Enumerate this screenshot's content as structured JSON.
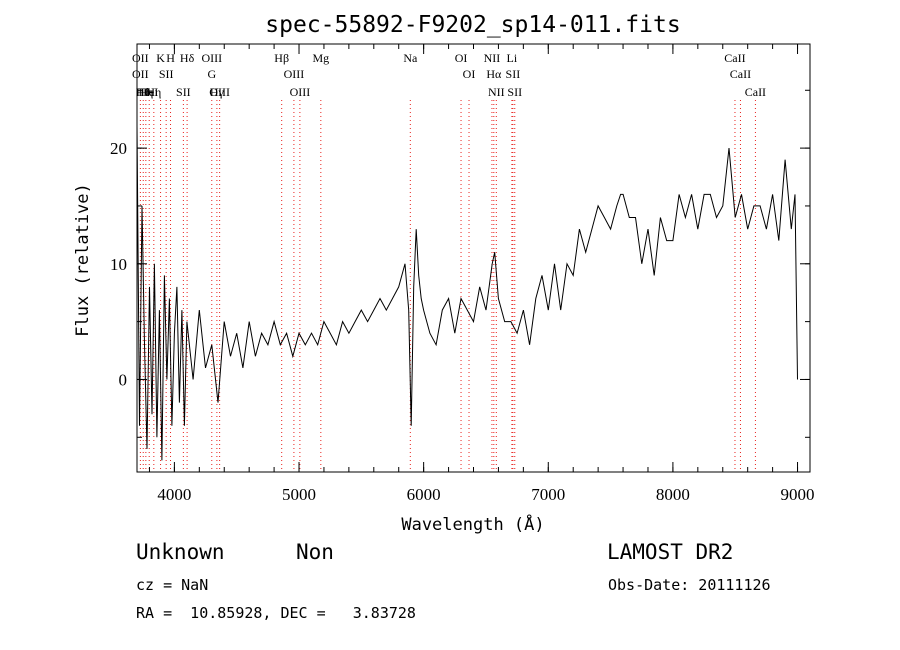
{
  "chart_data": {
    "type": "line",
    "title": "spec-55892-F9202_sp14-011.fits",
    "xlabel": "Wavelength (Å)",
    "ylabel": "Flux (relative)",
    "xlim": [
      3700,
      9100
    ],
    "ylim": [
      -8,
      29
    ],
    "x_ticks": [
      4000,
      5000,
      6000,
      7000,
      8000,
      9000
    ],
    "y_ticks": [
      0,
      10,
      20
    ],
    "line_color": "#000000",
    "marker_color": "#e8201c",
    "grid": false,
    "series": [
      {
        "x": [
          3700,
          3720,
          3740,
          3760,
          3780,
          3800,
          3820,
          3840,
          3860,
          3880,
          3900,
          3920,
          3940,
          3960,
          3980,
          4000,
          4020,
          4040,
          4060,
          4080,
          4100,
          4150,
          4200,
          4250,
          4300,
          4350,
          4400,
          4450,
          4500,
          4550,
          4600,
          4650,
          4700,
          4750,
          4800,
          4850,
          4900,
          4950,
          5000,
          5050,
          5100,
          5150,
          5200,
          5250,
          5300,
          5350,
          5400,
          5450,
          5500,
          5550,
          5600,
          5650,
          5700,
          5750,
          5800,
          5850,
          5880,
          5900,
          5920,
          5940,
          5960,
          5980,
          6000,
          6050,
          6100,
          6150,
          6200,
          6250,
          6300,
          6350,
          6400,
          6450,
          6500,
          6550,
          6570,
          6600,
          6650,
          6700,
          6750,
          6800,
          6850,
          6900,
          6950,
          7000,
          7050,
          7100,
          7150,
          7200,
          7250,
          7300,
          7350,
          7400,
          7450,
          7500,
          7550,
          7580,
          7600,
          7650,
          7700,
          7750,
          7800,
          7850,
          7900,
          7950,
          8000,
          8050,
          8100,
          8150,
          8200,
          8250,
          8300,
          8350,
          8400,
          8450,
          8500,
          8550,
          8600,
          8650,
          8700,
          8750,
          8800,
          8850,
          8900,
          8950,
          8980,
          9000
        ],
        "y": [
          22,
          -4,
          15,
          3,
          -6,
          8,
          -3,
          10,
          -5,
          6,
          -7,
          9,
          0,
          7,
          -4,
          4,
          8,
          -2,
          6,
          -4,
          5,
          0,
          6,
          1,
          3,
          -2,
          5,
          2,
          4,
          1,
          5,
          2,
          4,
          3,
          5,
          3,
          4,
          2,
          4,
          3,
          4,
          3,
          5,
          4,
          3,
          5,
          4,
          5,
          6,
          5,
          6,
          7,
          6,
          7,
          8,
          10,
          6,
          -4,
          8,
          13,
          9,
          7,
          6,
          4,
          3,
          6,
          7,
          4,
          7,
          6,
          5,
          8,
          6,
          10,
          11,
          7,
          5,
          5,
          4,
          6,
          3,
          7,
          9,
          6,
          10,
          6,
          10,
          9,
          13,
          11,
          13,
          15,
          14,
          13,
          15,
          16,
          16,
          14,
          14,
          10,
          13,
          9,
          14,
          12,
          12,
          16,
          14,
          16,
          13,
          16,
          16,
          14,
          15,
          20,
          14,
          16,
          13,
          15,
          15,
          13,
          16,
          12,
          19,
          13,
          16,
          0
        ]
      }
    ],
    "line_markers": [
      {
        "x": 3727,
        "labels": [
          "OII",
          "OII"
        ]
      },
      {
        "x": 3750,
        "labels": [
          "Hθ"
        ]
      },
      {
        "x": 3771,
        "labels": [
          "Hη"
        ]
      },
      {
        "x": 3798,
        "labels": [
          "HeI"
        ]
      },
      {
        "x": 3835,
        "labels": [
          "Hη"
        ]
      },
      {
        "x": 3889,
        "labels": [
          "K"
        ]
      },
      {
        "x": 3934,
        "labels": [
          "SII"
        ]
      },
      {
        "x": 3969,
        "labels": [
          "H"
        ]
      },
      {
        "x": 4072,
        "labels": [
          "SII"
        ]
      },
      {
        "x": 4102,
        "labels": [
          "Hδ"
        ]
      },
      {
        "x": 4300,
        "labels": [
          "OIII",
          "G"
        ]
      },
      {
        "x": 4341,
        "labels": [
          "Hγ"
        ]
      },
      {
        "x": 4363,
        "labels": [
          "OIII"
        ]
      },
      {
        "x": 4861,
        "labels": [
          "Hβ"
        ]
      },
      {
        "x": 4959,
        "labels": [
          "OIII"
        ]
      },
      {
        "x": 5007,
        "labels": [
          "OIII"
        ]
      },
      {
        "x": 5175,
        "labels": [
          "Mg"
        ]
      },
      {
        "x": 5893,
        "labels": [
          "Na"
        ]
      },
      {
        "x": 6300,
        "labels": [
          "OI"
        ]
      },
      {
        "x": 6364,
        "labels": [
          "OI"
        ]
      },
      {
        "x": 6548,
        "labels": [
          "NII"
        ]
      },
      {
        "x": 6563,
        "labels": [
          "Hα"
        ]
      },
      {
        "x": 6583,
        "labels": [
          "NII"
        ]
      },
      {
        "x": 6708,
        "labels": [
          "Li"
        ]
      },
      {
        "x": 6716,
        "labels": [
          "SII"
        ]
      },
      {
        "x": 6731,
        "labels": [
          "SII"
        ]
      },
      {
        "x": 8498,
        "labels": [
          "CaII"
        ]
      },
      {
        "x": 8542,
        "labels": [
          "CaII"
        ]
      },
      {
        "x": 8662,
        "labels": [
          "CaII"
        ]
      }
    ]
  },
  "info": {
    "class_label": "Unknown",
    "subclass_label": "Non",
    "survey_label": "LAMOST DR2",
    "cz_text": "cz = NaN",
    "obsdate_text": "Obs-Date: 20111126",
    "radec_text": "RA =  10.85928, DEC =   3.83728"
  }
}
